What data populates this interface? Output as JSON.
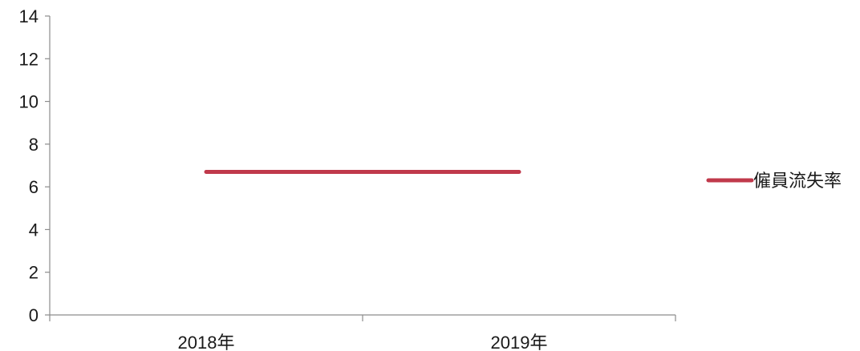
{
  "chart_data": {
    "type": "line",
    "categories": [
      "2018年",
      "2019年"
    ],
    "series": [
      {
        "name": "僱員流失率",
        "values": [
          6.7,
          6.7
        ],
        "color": "#C0394B"
      }
    ],
    "title": "",
    "xlabel": "",
    "ylabel": "",
    "ylim": [
      0,
      14
    ],
    "yticks": [
      0,
      2,
      4,
      6,
      8,
      10,
      12,
      14
    ],
    "grid": false,
    "legend": "right"
  }
}
